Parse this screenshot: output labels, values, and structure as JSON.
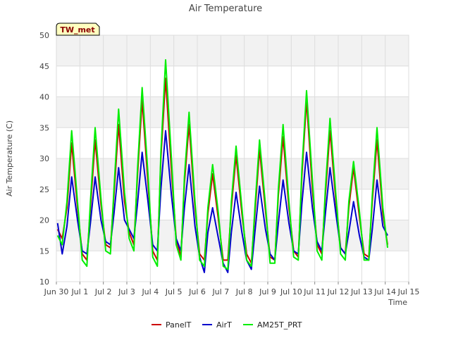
{
  "chart_data": {
    "type": "line",
    "title": "Air Temperature",
    "xlabel": "Time",
    "ylabel": "Air Temperature (C)",
    "badge": "TW_met",
    "ylim": [
      10,
      50
    ],
    "yticks": [
      10,
      15,
      20,
      25,
      30,
      35,
      40,
      45,
      50
    ],
    "xlim": [
      0,
      15
    ],
    "xticks": [
      {
        "x": 0,
        "label": "Jun 30"
      },
      {
        "x": 1,
        "label": "Jul 1"
      },
      {
        "x": 2,
        "label": "Jul 2"
      },
      {
        "x": 3,
        "label": "Jul 3"
      },
      {
        "x": 4,
        "label": "Jul 4"
      },
      {
        "x": 5,
        "label": "Jul 5"
      },
      {
        "x": 6,
        "label": "Jul 6"
      },
      {
        "x": 7,
        "label": "Jul 7"
      },
      {
        "x": 8,
        "label": "Jul 8"
      },
      {
        "x": 9,
        "label": "Jul 9"
      },
      {
        "x": 10,
        "label": "Jul 10"
      },
      {
        "x": 11,
        "label": "Jul 11"
      },
      {
        "x": 12,
        "label": "Jul 12"
      },
      {
        "x": 13,
        "label": "Jul 13"
      },
      {
        "x": 14,
        "label": "Jul 14"
      },
      {
        "x": 15,
        "label": "Jul 15"
      }
    ],
    "grid": true,
    "legend_position": "bottom-center",
    "series": [
      {
        "name": "PanelT",
        "color": "#cc0000",
        "x": [
          0.05,
          0.25,
          0.45,
          0.65,
          0.9,
          1.1,
          1.3,
          1.45,
          1.65,
          1.9,
          2.1,
          2.3,
          2.45,
          2.65,
          2.9,
          3.1,
          3.3,
          3.45,
          3.65,
          3.9,
          4.1,
          4.3,
          4.45,
          4.65,
          4.9,
          5.1,
          5.3,
          5.45,
          5.65,
          5.9,
          6.1,
          6.3,
          6.45,
          6.65,
          6.9,
          7.1,
          7.3,
          7.45,
          7.65,
          7.9,
          8.1,
          8.3,
          8.45,
          8.65,
          8.9,
          9.1,
          9.3,
          9.45,
          9.65,
          9.9,
          10.1,
          10.3,
          10.45,
          10.65,
          10.9,
          11.1,
          11.3,
          11.45,
          11.65,
          11.9,
          12.1,
          12.3,
          12.45,
          12.65,
          12.9,
          13.1,
          13.3,
          13.45,
          13.65,
          13.9,
          14.1
        ],
        "y": [
          18.5,
          17.0,
          22.0,
          32.5,
          22.0,
          14.5,
          13.5,
          22.0,
          33.0,
          22.5,
          16.0,
          15.5,
          24.0,
          35.5,
          23.0,
          18.0,
          16.0,
          27.0,
          39.5,
          26.0,
          15.0,
          13.5,
          30.0,
          43.0,
          28.0,
          17.0,
          14.0,
          26.0,
          35.5,
          22.0,
          14.5,
          13.5,
          21.0,
          27.5,
          20.0,
          13.5,
          13.5,
          22.0,
          30.5,
          21.0,
          14.5,
          13.0,
          21.0,
          31.5,
          21.5,
          14.0,
          13.5,
          24.0,
          33.5,
          22.0,
          15.0,
          14.0,
          27.0,
          39.5,
          25.0,
          16.0,
          14.5,
          24.0,
          34.5,
          23.0,
          15.5,
          14.5,
          22.0,
          28.5,
          20.5,
          14.5,
          14.0,
          23.0,
          33.0,
          21.0,
          16.0
        ]
      },
      {
        "name": "AirT",
        "color": "#0000cc",
        "x": [
          0.05,
          0.25,
          0.45,
          0.65,
          0.9,
          1.1,
          1.3,
          1.45,
          1.65,
          1.9,
          2.1,
          2.3,
          2.45,
          2.65,
          2.9,
          3.1,
          3.3,
          3.45,
          3.65,
          3.9,
          4.1,
          4.3,
          4.45,
          4.65,
          4.9,
          5.1,
          5.3,
          5.45,
          5.65,
          5.9,
          6.1,
          6.3,
          6.45,
          6.65,
          6.9,
          7.1,
          7.3,
          7.45,
          7.65,
          7.9,
          8.1,
          8.3,
          8.45,
          8.65,
          8.9,
          9.1,
          9.3,
          9.45,
          9.65,
          9.9,
          10.1,
          10.3,
          10.45,
          10.65,
          10.9,
          11.1,
          11.3,
          11.45,
          11.65,
          11.9,
          12.1,
          12.3,
          12.45,
          12.65,
          12.9,
          13.1,
          13.3,
          13.45,
          13.65,
          13.9,
          14.1
        ],
        "y": [
          19.5,
          14.5,
          19.0,
          27.0,
          20.0,
          15.0,
          14.5,
          19.5,
          27.0,
          20.0,
          16.5,
          16.0,
          21.0,
          28.5,
          20.0,
          18.5,
          17.0,
          22.5,
          31.0,
          23.0,
          16.0,
          15.0,
          25.0,
          34.5,
          24.0,
          17.0,
          15.0,
          22.0,
          29.0,
          19.0,
          14.0,
          11.5,
          18.0,
          22.0,
          17.0,
          13.0,
          11.5,
          18.0,
          24.5,
          18.0,
          13.5,
          12.0,
          18.0,
          25.5,
          18.5,
          14.5,
          13.5,
          19.5,
          26.5,
          19.5,
          15.0,
          14.5,
          22.5,
          31.0,
          22.0,
          16.5,
          15.0,
          21.0,
          28.5,
          21.0,
          15.5,
          14.5,
          18.0,
          23.0,
          17.5,
          14.0,
          13.5,
          18.5,
          26.5,
          19.0,
          17.5
        ]
      },
      {
        "name": "AM25T_PRT",
        "color": "#00ee00",
        "x": [
          0.05,
          0.25,
          0.45,
          0.65,
          0.9,
          1.1,
          1.3,
          1.45,
          1.65,
          1.9,
          2.1,
          2.3,
          2.45,
          2.65,
          2.9,
          3.1,
          3.3,
          3.45,
          3.65,
          3.9,
          4.1,
          4.3,
          4.45,
          4.65,
          4.9,
          5.1,
          5.3,
          5.45,
          5.65,
          5.9,
          6.1,
          6.3,
          6.45,
          6.65,
          6.9,
          7.1,
          7.3,
          7.45,
          7.65,
          7.9,
          8.1,
          8.3,
          8.45,
          8.65,
          8.9,
          9.1,
          9.3,
          9.45,
          9.65,
          9.9,
          10.1,
          10.3,
          10.45,
          10.65,
          10.9,
          11.1,
          11.3,
          11.45,
          11.65,
          11.9,
          12.1,
          12.3,
          12.45,
          12.65,
          12.9,
          13.1,
          13.3,
          13.45,
          13.65,
          13.9,
          14.1
        ],
        "y": [
          17.5,
          16.0,
          23.0,
          34.5,
          23.0,
          13.5,
          12.5,
          23.0,
          35.0,
          23.5,
          15.0,
          14.5,
          25.0,
          38.0,
          24.5,
          17.0,
          15.0,
          28.0,
          41.5,
          27.5,
          14.0,
          12.5,
          31.0,
          46.0,
          30.0,
          16.0,
          13.5,
          27.0,
          37.5,
          23.0,
          13.5,
          12.5,
          22.0,
          29.0,
          21.0,
          12.5,
          12.0,
          23.0,
          32.0,
          22.0,
          13.5,
          12.5,
          22.0,
          33.0,
          22.5,
          13.0,
          13.0,
          25.0,
          35.5,
          23.0,
          14.0,
          13.5,
          28.0,
          41.0,
          26.5,
          15.0,
          13.5,
          25.0,
          36.5,
          24.0,
          14.5,
          13.5,
          23.0,
          29.5,
          21.5,
          13.5,
          13.5,
          24.0,
          35.0,
          22.0,
          15.5
        ]
      }
    ]
  }
}
